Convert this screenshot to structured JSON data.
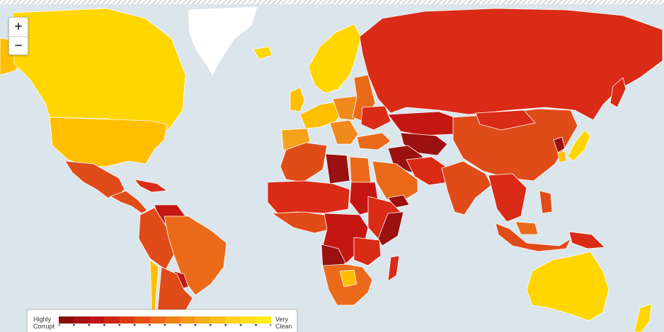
{
  "map": {
    "zoom_in_label": "+",
    "zoom_out_label": "−",
    "ocean_color": "#dbe5ec",
    "border_color": "#ffffff",
    "palette": {
      "very_clean": "#ffd600",
      "clean": "#ffbf00",
      "moderate_high": "#f7a21b",
      "moderate": "#f08a1c",
      "moderate_low": "#ea6a1a",
      "corrupt_high": "#e04b1a",
      "corrupt": "#d92b16",
      "very_corrupt": "#c41712",
      "highly_corrupt": "#9b1010",
      "no_data": "#ffffff"
    }
  },
  "legend": {
    "low_label": [
      "Highly",
      "Corrupt"
    ],
    "high_label": [
      "Very",
      "Clean"
    ],
    "scale_colors": [
      "#8b0e0e",
      "#a51212",
      "#bd1515",
      "#cf2416",
      "#dc3a17",
      "#e55118",
      "#ec6a19",
      "#f0801b",
      "#f4961d",
      "#f8ac1f",
      "#fbc01f",
      "#fed21c",
      "#ffdf1a",
      "#ffeb18"
    ]
  }
}
